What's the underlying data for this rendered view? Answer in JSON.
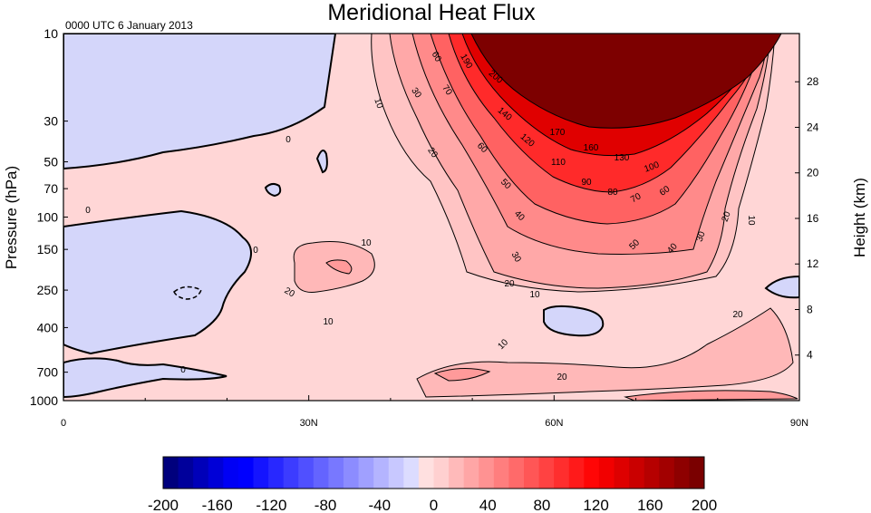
{
  "chart_data": {
    "type": "heatmap",
    "title": "Meridional Heat Flux",
    "subtitle": "0000 UTC 6 January 2013",
    "xlabel": "",
    "ylabel": "Pressure (hPa)",
    "ylabel_right": "Height (km)",
    "x_ticks": [
      "0",
      "30N",
      "60N",
      "90N"
    ],
    "x_range": [
      0,
      90
    ],
    "y_ticks": [
      "10",
      "30",
      "50",
      "70",
      "100",
      "150",
      "250",
      "400",
      "700",
      "1000"
    ],
    "y_range_hPa": [
      1000,
      10
    ],
    "y_scale": "log",
    "right_ticks": [
      "4",
      "8",
      "12",
      "16",
      "20",
      "24",
      "28"
    ],
    "colorbar": {
      "tick_labels": [
        "-200",
        "-160",
        "-120",
        "-80",
        "-40",
        "0",
        "40",
        "80",
        "120",
        "160",
        "200"
      ],
      "range": [
        -200,
        200
      ],
      "step": 10,
      "colors": [
        "#00007d",
        "#00009b",
        "#0000b9",
        "#0000d7",
        "#0000f5",
        "#0000ff",
        "#1414ff",
        "#2828ff",
        "#3c3cff",
        "#5050ff",
        "#6464ff",
        "#7878ff",
        "#8c8cff",
        "#a0a0ff",
        "#b4b4ff",
        "#c8c8ff",
        "#dcdcff",
        "#ffe0e0",
        "#ffd0d0",
        "#ffbaba",
        "#ffa6a6",
        "#ff9292",
        "#ff7e7e",
        "#ff6a6a",
        "#ff5656",
        "#ff4242",
        "#ff2e2e",
        "#ff1a1a",
        "#ff0606",
        "#f20000",
        "#de0000",
        "#ca0000",
        "#b60000",
        "#a20000",
        "#8e0000",
        "#7a0000"
      ]
    },
    "contour_labels": [
      "0",
      "10",
      "20",
      "30",
      "40",
      "50",
      "60",
      "70",
      "80",
      "90",
      "100",
      "110",
      "120",
      "130",
      "140",
      "160",
      "170",
      "190",
      "200"
    ],
    "field_samples": [
      {
        "lat": 5,
        "p": 30,
        "value": -5
      },
      {
        "lat": 5,
        "p": 150,
        "value": -5
      },
      {
        "lat": 15,
        "p": 400,
        "value": -4
      },
      {
        "lat": 30,
        "p": 70,
        "value": 3
      },
      {
        "lat": 32,
        "p": 200,
        "value": 22
      },
      {
        "lat": 45,
        "p": 300,
        "value": 12
      },
      {
        "lat": 60,
        "p": 300,
        "value": 12
      },
      {
        "lat": 60,
        "p": 350,
        "value": -3
      },
      {
        "lat": 65,
        "p": 120,
        "value": 55
      },
      {
        "lat": 65,
        "p": 60,
        "value": 95
      },
      {
        "lat": 65,
        "p": 30,
        "value": 160
      },
      {
        "lat": 70,
        "p": 12,
        "value": 230
      },
      {
        "lat": 85,
        "p": 300,
        "value": 15
      },
      {
        "lat": 89,
        "p": 250,
        "value": -3
      },
      {
        "lat": 60,
        "p": 800,
        "value": 22
      }
    ]
  }
}
